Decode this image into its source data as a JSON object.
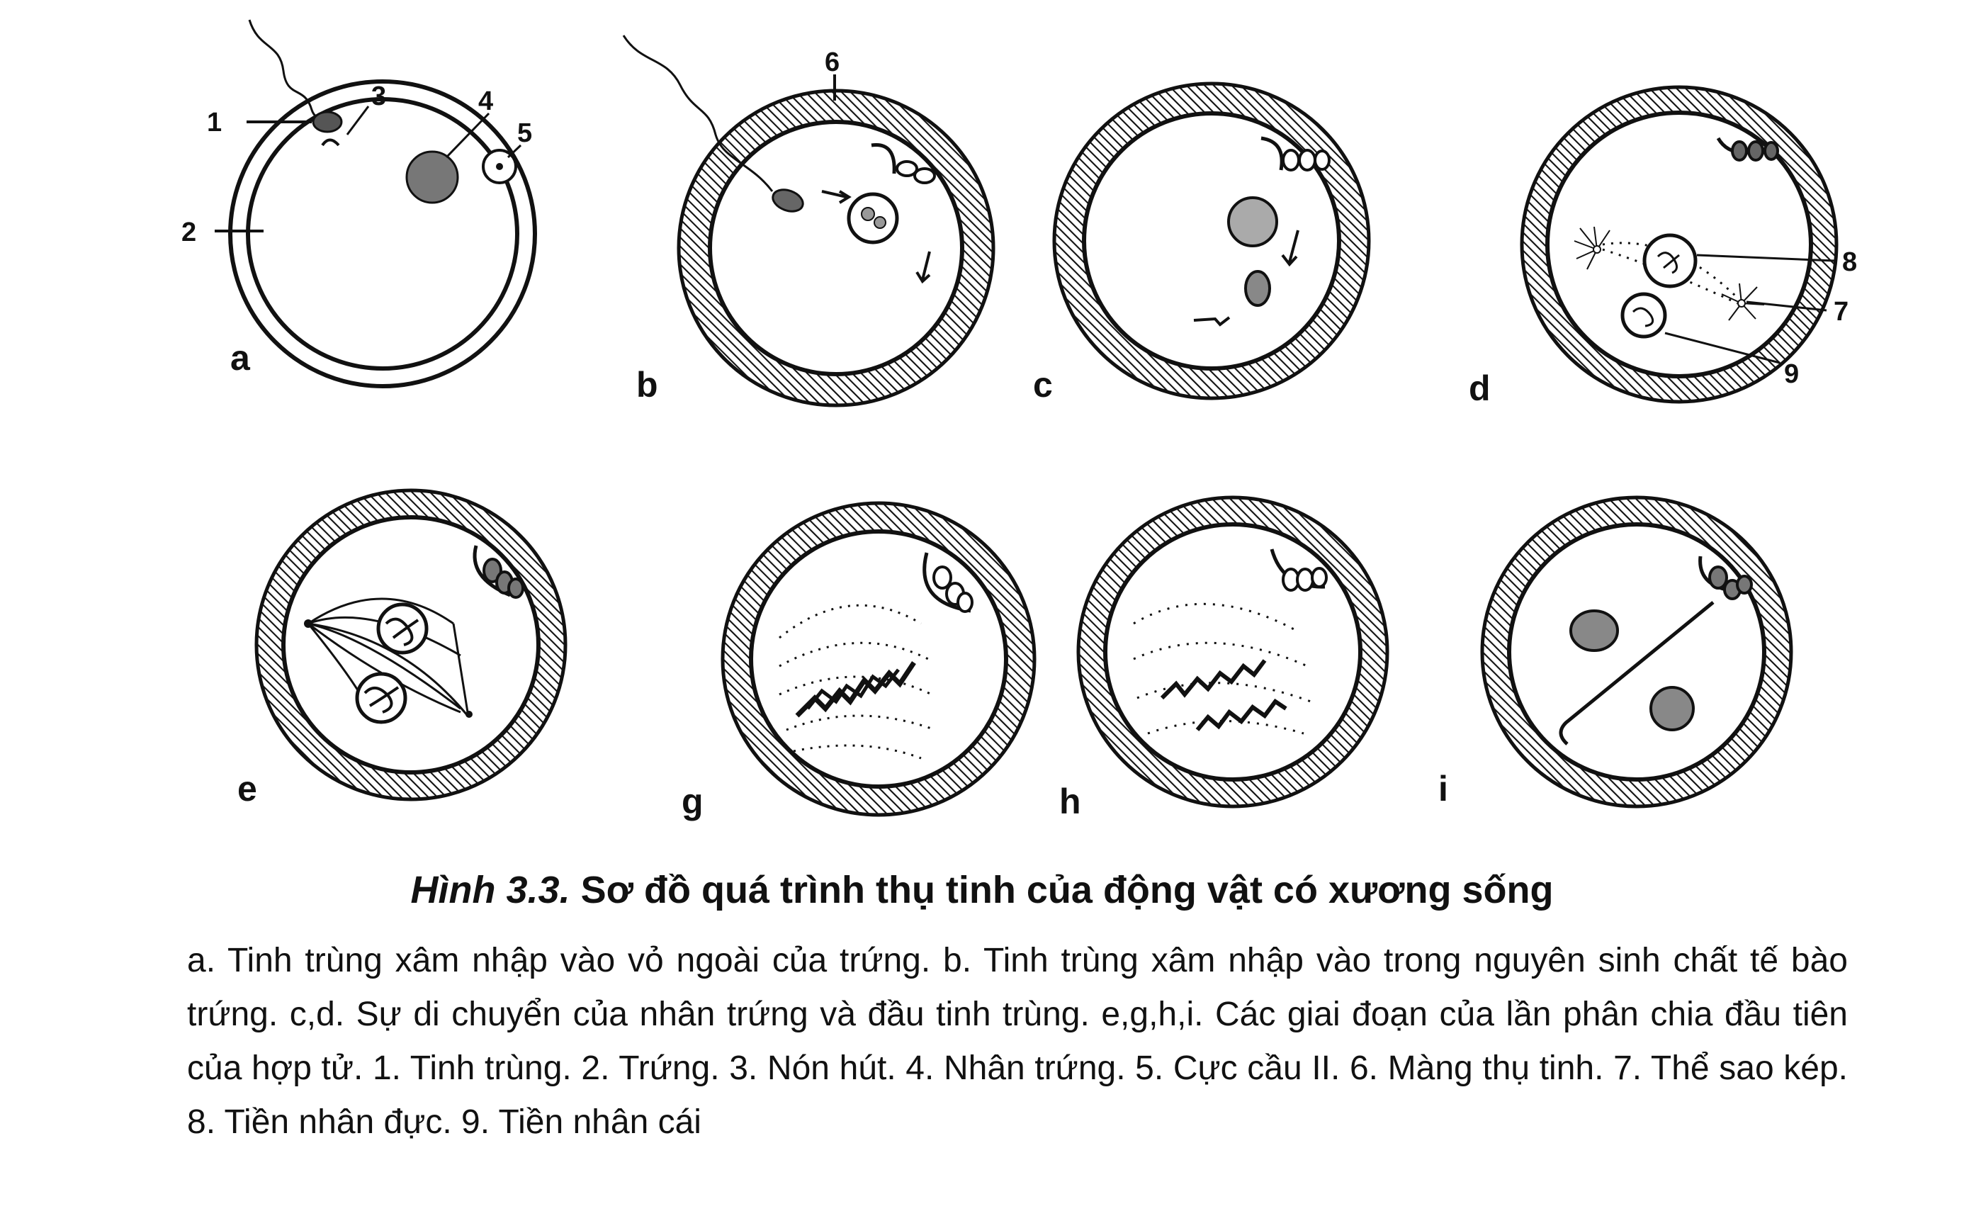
{
  "figure": {
    "panels": [
      {
        "id": "a",
        "letter": "a"
      },
      {
        "id": "b",
        "letter": "b"
      },
      {
        "id": "c",
        "letter": "c"
      },
      {
        "id": "d",
        "letter": "d"
      },
      {
        "id": "e",
        "letter": "e"
      },
      {
        "id": "g",
        "letter": "g"
      },
      {
        "id": "h",
        "letter": "h"
      },
      {
        "id": "i",
        "letter": "i"
      }
    ],
    "callouts": [
      "1",
      "2",
      "3",
      "4",
      "5",
      "6",
      "7",
      "8",
      "9"
    ]
  },
  "caption": {
    "label": "Hình 3.3.",
    "title": "Sơ đồ quá trình thụ tinh của động vật có xương sống"
  },
  "legend": {
    "text": "a. Tinh trùng xâm nhập vào vỏ ngoài của trứng. b. Tinh trùng xâm nhập vào trong nguyên sinh chất tế bào trứng. c,d. Sự di chuyển của nhân trứng và đầu tinh trùng. e,g,h,i. Các giai đoạn của lần phân chia đầu tiên của hợp tử. 1. Tinh trùng. 2. Trứng. 3. Nón hút. 4. Nhân trứng. 5. Cực cầu II. 6. Màng thụ tinh. 7. Thể sao kép. 8. Tiền nhân đực. 9. Tiền nhân cái"
  }
}
